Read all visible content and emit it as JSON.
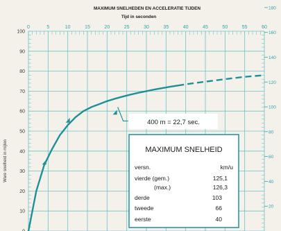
{
  "chart_data": {
    "type": "line",
    "title": "MAXIMUM SNELHEDEN EN ACCELERATIE TIJDEN",
    "x_axis_title": "Tijd in seconden",
    "y_axis_title": "Ware snelheid in mijlen",
    "x_ticks": [
      "0",
      "5",
      "10",
      "15",
      "20",
      "25",
      "30",
      "35",
      "40",
      "45",
      "50",
      "55",
      "60"
    ],
    "y_ticks_left": [
      "100",
      "90",
      "80",
      "70",
      "60",
      "50",
      "40",
      "30",
      "20",
      "10",
      "0"
    ],
    "y_ticks_right": [
      "180",
      "160",
      "140",
      "120",
      "100",
      "80",
      "60",
      "40",
      "20"
    ],
    "xlim": [
      0,
      60
    ],
    "ylim": [
      0,
      100
    ],
    "series": [
      {
        "curve_solid": [
          [
            0,
            0
          ],
          [
            2,
            20
          ],
          [
            4,
            33
          ],
          [
            6,
            41
          ],
          [
            8,
            48
          ],
          [
            10,
            53
          ],
          [
            12,
            57
          ],
          [
            14,
            60
          ],
          [
            16,
            62
          ],
          [
            18,
            63.5
          ],
          [
            20,
            65
          ],
          [
            22,
            66.2
          ],
          [
            24,
            67.3
          ],
          [
            26,
            68.3
          ],
          [
            28,
            69.2
          ],
          [
            30,
            70
          ],
          [
            32,
            70.8
          ],
          [
            34,
            71.5
          ],
          [
            36,
            72.2
          ],
          [
            38,
            72.8
          ]
        ],
        "curve_dashed": [
          [
            38,
            72.8
          ],
          [
            42,
            74
          ],
          [
            46,
            75
          ],
          [
            50,
            76
          ],
          [
            55,
            77.2
          ],
          [
            60,
            78
          ]
        ],
        "gear_changes": [
          [
            4,
            35
          ],
          [
            10,
            56
          ],
          [
            22,
            60
          ]
        ]
      }
    ],
    "annotation": "400 m  =  22,7 sec.",
    "annotation_point": [
      22.7,
      62
    ]
  },
  "speed_box": {
    "title": "MAXIMUM SNELHEID",
    "header_left": "versn.",
    "header_right": "km/u",
    "rows": [
      {
        "label": "vierde  (gem.)",
        "value": "125,1"
      },
      {
        "label": "(max.)",
        "value": "126,3"
      },
      {
        "label": "derde",
        "value": "103"
      },
      {
        "label": "tweede",
        "value": "66"
      },
      {
        "label": "eerste",
        "value": "40"
      }
    ]
  },
  "colors": {
    "teal": "#2aa3ad",
    "grid": "#6cc3cb",
    "curve": "#1f8f98",
    "background": "#f4f1ea"
  }
}
